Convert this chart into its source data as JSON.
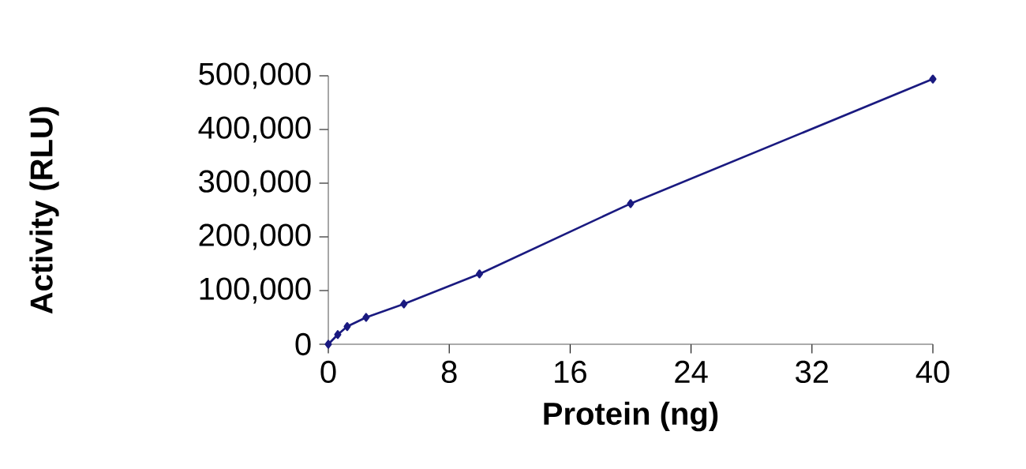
{
  "chart_data": {
    "type": "line",
    "xlabel": "Protein (ng)",
    "ylabel": "Activity (RLU)",
    "x": [
      0,
      0.625,
      1.25,
      2.5,
      5,
      10,
      20,
      40
    ],
    "series": [
      {
        "color": "#1a1a80",
        "values": [
          0,
          18000,
          33000,
          50000,
          75000,
          131000,
          262000,
          494000
        ]
      }
    ],
    "xlim": [
      0,
      40
    ],
    "ylim": [
      0,
      500000
    ],
    "xticks": [
      0,
      8,
      16,
      24,
      32,
      40
    ],
    "yticks": [
      0,
      {
        "value": 100000,
        "label": "100,000"
      },
      {
        "value": 200000,
        "label": "200,000"
      },
      {
        "value": 300000,
        "label": "300,000"
      },
      {
        "value": 400000,
        "label": "400,000"
      },
      {
        "value": 500000,
        "label": "500,000"
      }
    ],
    "marker": "diamond",
    "grid": false,
    "line_style": "solid"
  }
}
